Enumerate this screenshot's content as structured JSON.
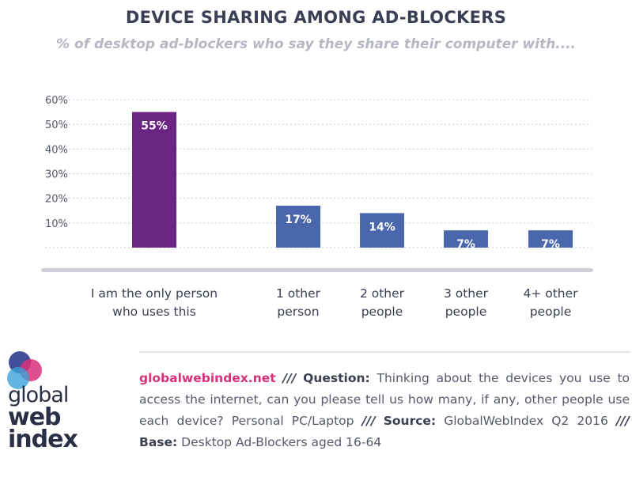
{
  "title": "DEVICE SHARING AMONG AD-BLOCKERS",
  "subtitle": "% of desktop ad-blockers who say they share their computer with....",
  "chart_data": {
    "type": "bar",
    "categories": [
      "I am the only person\nwho uses this",
      "1 other\nperson",
      "2 other\npeople",
      "3 other\npeople",
      "4+ other\npeople"
    ],
    "values": [
      55,
      17,
      14,
      7,
      7
    ],
    "data_labels": [
      "55%",
      "17%",
      "14%",
      "7%",
      "7%"
    ],
    "yticks": [
      "10%",
      "20%",
      "30%",
      "40%",
      "50%",
      "60%"
    ],
    "ylim": [
      0,
      60
    ],
    "grid": true,
    "colors": [
      "#6a2482",
      "#4a66ad",
      "#4a66ad",
      "#4a66ad",
      "#4a66ad"
    ]
  },
  "footer": {
    "brand": "globalwebindex.net",
    "sep": "///",
    "question_label": "Question:",
    "question_text": "Thinking about the devices you use to access the internet, can you please tell us how many, if any, other people use each device? Personal PC/Laptop",
    "source_label": "Source:",
    "source_text": "GlobalWebIndex Q2 2016",
    "base_label": "Base:",
    "base_text": "Desktop Ad-Blockers aged 16-64"
  },
  "logo": {
    "line1": "global",
    "line2": "web",
    "line3": "index",
    "colors": [
      "#2e3d8f",
      "#d8307a",
      "#3aa3d8"
    ]
  }
}
